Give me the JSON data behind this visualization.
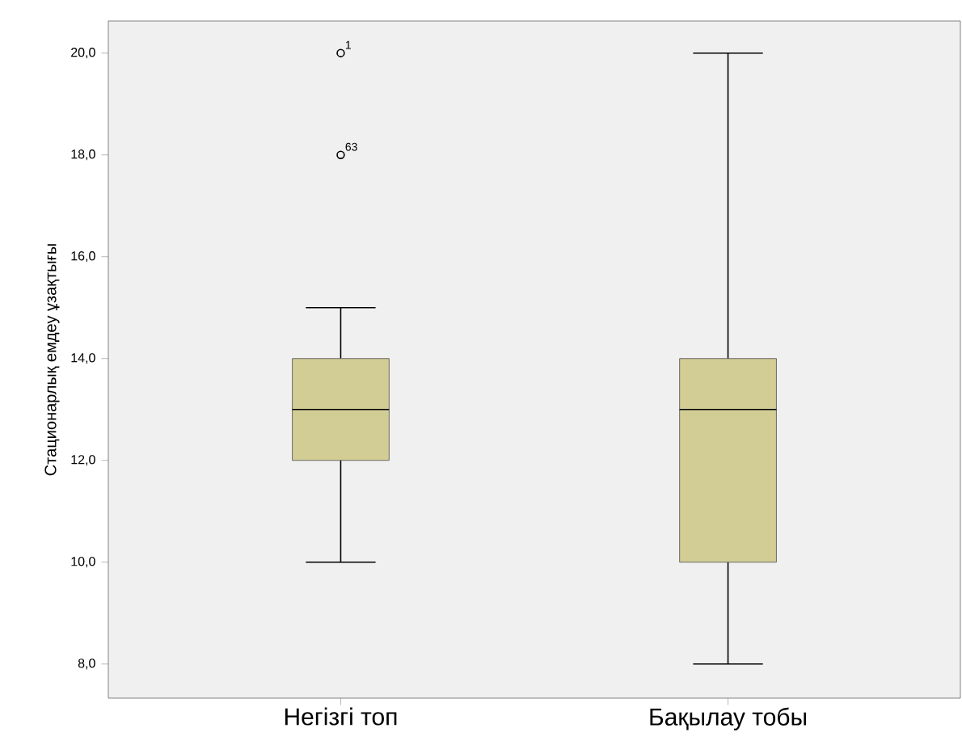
{
  "chart_data": {
    "type": "box",
    "ylabel": "Стационарлық емдеу ұзақтығы",
    "categories": [
      "Негізгі топ",
      "Бақылау тобы"
    ],
    "boxes": [
      {
        "low": 10,
        "q1": 12,
        "median": 13,
        "q3": 14,
        "high": 15,
        "outliers": [
          20,
          18
        ]
      },
      {
        "low": 8,
        "q1": 10,
        "median": 13,
        "q3": 14,
        "high": 20
      }
    ],
    "color": "#d2cd95",
    "ylim": [
      7.33,
      20.63
    ],
    "yticks": [
      {
        "value": 8,
        "label": "8,0"
      },
      {
        "value": 10,
        "label": "10,0"
      },
      {
        "value": 12,
        "label": "12,0"
      },
      {
        "value": 14,
        "label": "14,0"
      },
      {
        "value": 16,
        "label": "16,0"
      },
      {
        "value": 18,
        "label": "18,0"
      },
      {
        "value": 20,
        "label": "20,0"
      }
    ],
    "grid": false,
    "marker": "circle",
    "annotations": [
      "1",
      "63"
    ]
  }
}
